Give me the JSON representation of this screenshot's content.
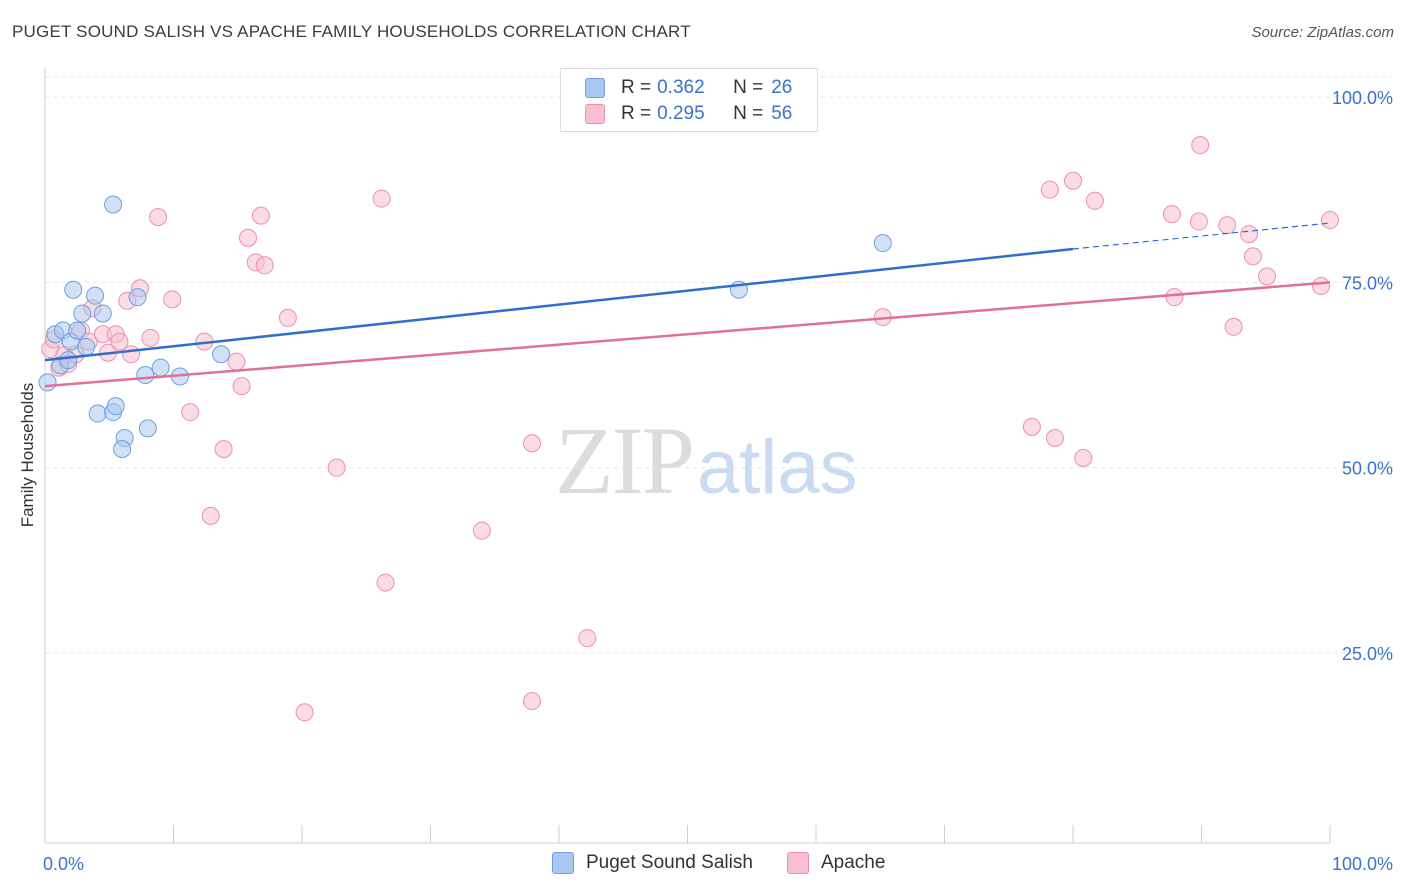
{
  "title": "PUGET SOUND SALISH VS APACHE FAMILY HOUSEHOLDS CORRELATION CHART",
  "source": "Source: ZipAtlas.com",
  "watermark": {
    "zip": "ZIP",
    "atlas": "atlas"
  },
  "stats": [
    {
      "r_label": "R =",
      "r_value": "0.362",
      "n_label": "N =",
      "n_value": "26",
      "color": "#a9c8f0",
      "border": "#6e9fe0"
    },
    {
      "r_label": "R =",
      "r_value": "0.295",
      "n_label": "N =",
      "n_value": "56",
      "color": "#f7bfd0",
      "border": "#ec8fae"
    }
  ],
  "legend": [
    {
      "label": "Puget Sound Salish",
      "color": "#a9c8f0",
      "border": "#6e9fe0"
    },
    {
      "label": "Apache",
      "color": "#f7bfd0",
      "border": "#ec8fae"
    }
  ],
  "chart_data": {
    "type": "scatter",
    "title": "PUGET SOUND SALISH VS APACHE FAMILY HOUSEHOLDS CORRELATION CHART",
    "xlabel": "",
    "ylabel": "Family Households",
    "xlim": [
      0,
      100
    ],
    "ylim": [
      0,
      105
    ],
    "x_tick_labels": [
      "0.0%",
      "100.0%"
    ],
    "y_ticks": [
      25,
      50,
      75,
      100
    ],
    "y_tick_labels": [
      "25.0%",
      "50.0%",
      "75.0%",
      "100.0%"
    ],
    "grid": true,
    "series": [
      {
        "name": "Puget Sound Salish",
        "color": "#6e9fe0",
        "fill": "#a9c8f0",
        "line_color": "#2f6fcb",
        "trend": {
          "x0": 0,
          "y0": 64.5,
          "x1": 80,
          "y1": 79.5,
          "dash_to": 100,
          "dash_y": 83
        },
        "points": [
          [
            0.2,
            61.5
          ],
          [
            0.8,
            68
          ],
          [
            1.2,
            63.8
          ],
          [
            1.4,
            68.5
          ],
          [
            1.8,
            64.5
          ],
          [
            2.0,
            67
          ],
          [
            2.2,
            74
          ],
          [
            2.5,
            68.5
          ],
          [
            2.9,
            70.8
          ],
          [
            3.2,
            66.3
          ],
          [
            3.9,
            73.2
          ],
          [
            4.5,
            70.8
          ],
          [
            4.1,
            57.3
          ],
          [
            5.3,
            57.5
          ],
          [
            5.5,
            58.3
          ],
          [
            6.2,
            54
          ],
          [
            6.0,
            52.5
          ],
          [
            5.3,
            85.5
          ],
          [
            7.2,
            73
          ],
          [
            7.8,
            62.5
          ],
          [
            8.0,
            55.3
          ],
          [
            9.0,
            63.5
          ],
          [
            10.5,
            62.3
          ],
          [
            13.7,
            65.3
          ],
          [
            54.0,
            74
          ],
          [
            65.2,
            80.3
          ]
        ]
      },
      {
        "name": "Apache",
        "color": "#ec8fae",
        "fill": "#f7bfd0",
        "line_color": "#e0709a",
        "trend": {
          "x0": 0,
          "y0": 61,
          "x1": 100,
          "y1": 75
        },
        "points": [
          [
            0.4,
            66
          ],
          [
            0.7,
            67.3
          ],
          [
            1.1,
            63.5
          ],
          [
            1.5,
            65.2
          ],
          [
            1.8,
            64
          ],
          [
            2.4,
            65.3
          ],
          [
            2.8,
            68.5
          ],
          [
            3.4,
            67
          ],
          [
            3.7,
            71.5
          ],
          [
            4.5,
            68
          ],
          [
            4.9,
            65.5
          ],
          [
            5.5,
            68
          ],
          [
            5.8,
            67
          ],
          [
            6.4,
            72.5
          ],
          [
            6.7,
            65.3
          ],
          [
            7.4,
            74.2
          ],
          [
            8.2,
            67.5
          ],
          [
            8.8,
            83.8
          ],
          [
            9.9,
            72.7
          ],
          [
            11.3,
            57.5
          ],
          [
            12.4,
            67
          ],
          [
            12.9,
            43.5
          ],
          [
            13.9,
            52.5
          ],
          [
            14.9,
            64.3
          ],
          [
            15.3,
            61
          ],
          [
            15.8,
            81
          ],
          [
            16.4,
            77.7
          ],
          [
            16.8,
            84
          ],
          [
            17.1,
            77.3
          ],
          [
            18.9,
            70.2
          ],
          [
            20.2,
            17
          ],
          [
            22.7,
            50
          ],
          [
            26.2,
            86.3
          ],
          [
            26.5,
            34.5
          ],
          [
            34.0,
            41.5
          ],
          [
            37.9,
            53.3
          ],
          [
            37.9,
            18.5
          ],
          [
            42.2,
            27
          ],
          [
            65.2,
            70.3
          ],
          [
            76.8,
            55.5
          ],
          [
            78.2,
            87.5
          ],
          [
            78.6,
            54
          ],
          [
            80.0,
            88.7
          ],
          [
            80.8,
            51.3
          ],
          [
            81.7,
            86
          ],
          [
            87.7,
            84.2
          ],
          [
            87.9,
            73
          ],
          [
            89.8,
            83.2
          ],
          [
            89.9,
            93.5
          ],
          [
            92.0,
            82.7
          ],
          [
            92.5,
            69
          ],
          [
            93.7,
            81.5
          ],
          [
            94.0,
            78.5
          ],
          [
            95.1,
            75.8
          ],
          [
            99.3,
            74.5
          ],
          [
            100.0,
            83.4
          ]
        ]
      }
    ]
  }
}
